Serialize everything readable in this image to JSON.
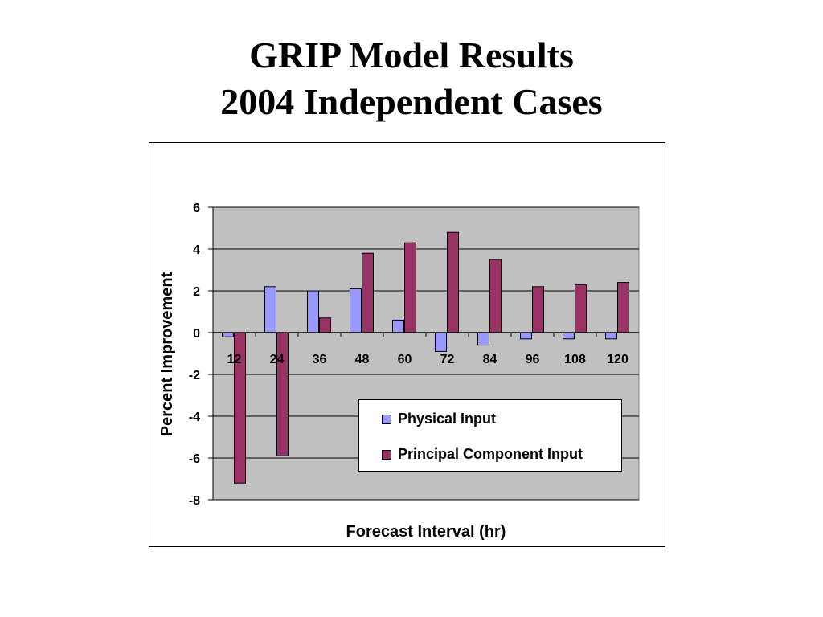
{
  "slide": {
    "title_line1": "GRIP Model Results",
    "title_line2": "2004 Independent Cases"
  },
  "chart_data": {
    "type": "bar",
    "categories": [
      "12",
      "24",
      "36",
      "48",
      "60",
      "72",
      "84",
      "96",
      "108",
      "120"
    ],
    "series": [
      {
        "name": "Physical Input",
        "color": "#9999ff",
        "values": [
          -0.2,
          2.2,
          2.0,
          2.1,
          0.6,
          -0.9,
          -0.6,
          -0.3,
          -0.3,
          -0.3
        ]
      },
      {
        "name": "Principal Component Input",
        "color": "#993366",
        "values": [
          -7.2,
          -5.9,
          0.7,
          3.8,
          4.3,
          4.8,
          3.5,
          2.2,
          2.3,
          2.4
        ]
      }
    ],
    "xlabel": "Forecast Interval (hr)",
    "ylabel": "Percent Improvement",
    "ylim": [
      -8,
      6
    ],
    "yticks": [
      6,
      4,
      2,
      0,
      -2,
      -4,
      -6,
      -8
    ],
    "grid": true,
    "plot_background": "#c0c0c0",
    "legend_position": "bottom-right inside plot"
  }
}
